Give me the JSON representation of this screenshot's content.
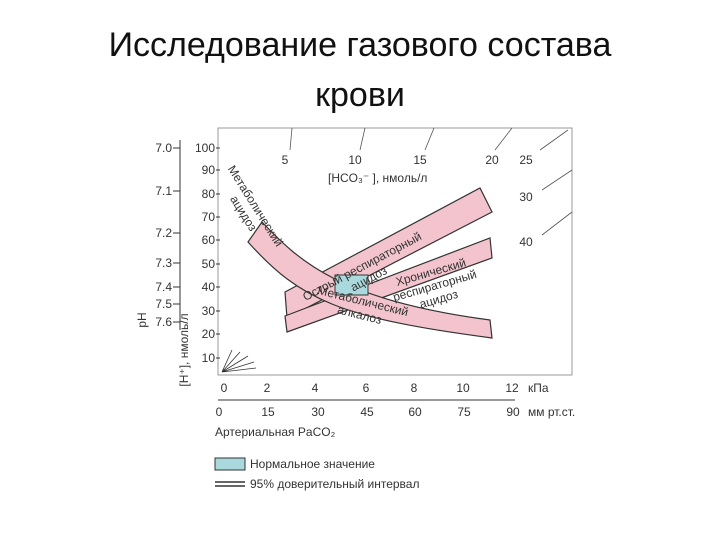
{
  "title": [
    "Исследование газового состава",
    "крови"
  ],
  "chart": {
    "h_ticks": [
      "100",
      "90",
      "80",
      "70",
      "60",
      "50",
      "40",
      "30",
      "20",
      "10"
    ],
    "ph_ticks": [
      "7.0",
      "7.1",
      "7.2",
      "7.3",
      "7.4",
      "7.5",
      "7.6"
    ],
    "kpa_ticks": [
      "0",
      "2",
      "4",
      "6",
      "8",
      "10",
      "12"
    ],
    "kpa_unit": "кПа",
    "mm_ticks": [
      "0",
      "15",
      "30",
      "45",
      "60",
      "75",
      "90"
    ],
    "mm_unit": "мм рт.ст.",
    "hco3_ticks": [
      "5",
      "10",
      "15",
      "20",
      "25",
      "30",
      "40"
    ],
    "hco3_label": "[HCO₃⁻ ], нмоль/л",
    "x_label": "Артериальная PaCO₂",
    "ph_label": "pH",
    "h_label": "[H⁺], нмоль/л",
    "regions": [
      {
        "lines": [
          "Метаболический",
          "ацидоз"
        ]
      },
      {
        "lines": [
          "Острый респираторный",
          "ацидоз"
        ]
      },
      {
        "lines": [
          "Хронический",
          "респираторный",
          "ацидоз"
        ]
      },
      {
        "lines": [
          "Метаболический",
          "алкалоз"
        ]
      }
    ],
    "legend": [
      "Нормальное значение",
      "95% доверительный интервал"
    ]
  }
}
